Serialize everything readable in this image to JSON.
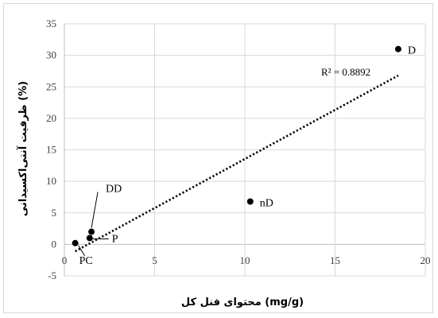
{
  "chart_data": {
    "type": "scatter",
    "xlabel": "محتوای فنل کل  (mg/g)",
    "ylabel": "ظرفیت آنتی‌اکسیدانی (%)",
    "xlim": [
      0,
      20
    ],
    "ylim": [
      -5,
      35
    ],
    "xticks": [
      0,
      5,
      10,
      15,
      20
    ],
    "yticks": [
      -5,
      0,
      5,
      10,
      15,
      20,
      25,
      30,
      35
    ],
    "grid": true,
    "points": [
      {
        "label": "PC",
        "x": 0.6,
        "y": 0.2
      },
      {
        "label": "P",
        "x": 1.4,
        "y": 1.0
      },
      {
        "label": "DD",
        "x": 1.5,
        "y": 2.0
      },
      {
        "label": "nD",
        "x": 10.3,
        "y": 6.8
      },
      {
        "label": "D",
        "x": 18.5,
        "y": 31.0
      }
    ],
    "trendline": {
      "type": "linear",
      "style": "dotted",
      "x_start": 0.6,
      "y_start": -1.1,
      "x_end": 18.5,
      "y_end": 26.8,
      "r2_text": "R² = 0.8892"
    },
    "colors": {
      "points": "#000000",
      "grid": "#d9d9d9",
      "axis": "#bfbfbf",
      "trend": "#000000"
    }
  }
}
